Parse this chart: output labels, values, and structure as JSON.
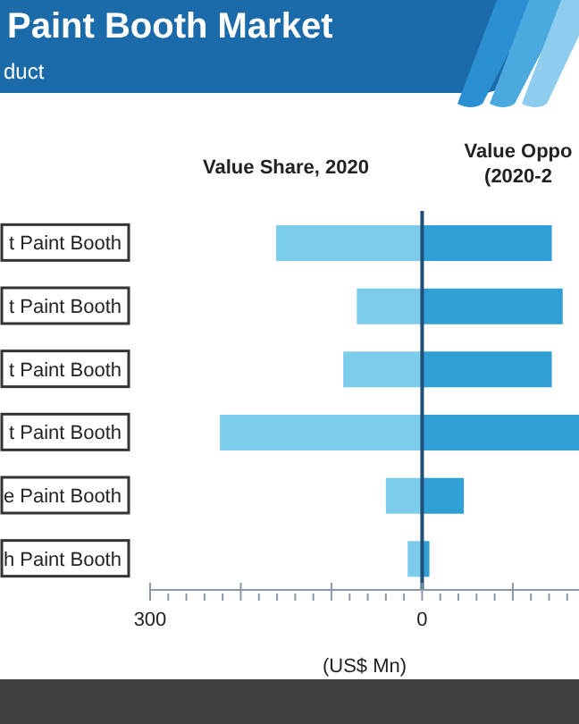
{
  "chart_data": {
    "type": "bar",
    "orientation": "horizontal",
    "stacked": true,
    "title": "Paint Booth Market",
    "subtitle": "duct",
    "xlabel": "(US$ Mn)",
    "categories": [
      "t Paint Booth",
      "t Paint Booth",
      "t Paint Booth",
      "t Paint Booth",
      "e Paint Booth",
      "h Paint Booth"
    ],
    "series": [
      {
        "name": "Value Share, 2020",
        "color": "#7ccdeb",
        "values": [
          -161,
          -72,
          -87,
          -223,
          -40,
          -16
        ]
      },
      {
        "name": "Value Oppo (2020-2",
        "color": "#2f9fd6",
        "values": [
          143,
          155,
          143,
          173,
          46,
          8
        ]
      }
    ],
    "xlim": [
      -300,
      173
    ],
    "xticks": [
      {
        "value": -300,
        "label": "300"
      },
      {
        "value": -280,
        "label": null
      },
      {
        "value": -260,
        "label": null
      },
      {
        "value": -240,
        "label": null
      },
      {
        "value": -220,
        "label": null
      },
      {
        "value": -200,
        "label": null
      },
      {
        "value": -180,
        "label": null
      },
      {
        "value": -160,
        "label": null
      },
      {
        "value": -140,
        "label": null
      },
      {
        "value": -120,
        "label": null
      },
      {
        "value": -100,
        "label": null
      },
      {
        "value": -80,
        "label": null
      },
      {
        "value": -60,
        "label": null
      },
      {
        "value": -40,
        "label": null
      },
      {
        "value": -20,
        "label": null
      },
      {
        "value": 0,
        "label": "0"
      },
      {
        "value": 20,
        "label": null
      },
      {
        "value": 40,
        "label": null
      },
      {
        "value": 60,
        "label": null
      },
      {
        "value": 80,
        "label": null
      },
      {
        "value": 100,
        "label": null
      },
      {
        "value": 120,
        "label": null
      },
      {
        "value": 140,
        "label": null
      },
      {
        "value": 160,
        "label": null
      }
    ],
    "ref_lines": [
      {
        "axis": "x",
        "value": 0,
        "color": "#1f4e79"
      }
    ],
    "grid": false
  }
}
